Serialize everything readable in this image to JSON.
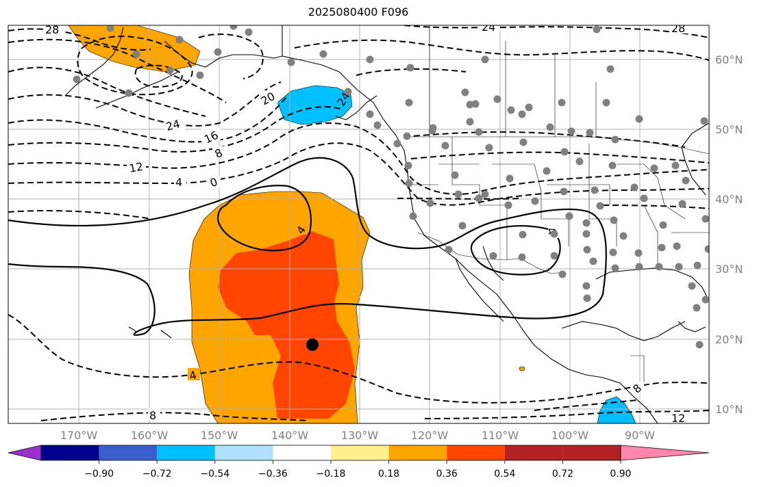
{
  "title": "2025080400 F096",
  "lat_labels": [
    "60°N",
    "50°N",
    "40°N",
    "30°N",
    "20°N",
    "10°N"
  ],
  "lon_labels": [
    "170°W",
    "160°W",
    "150°W",
    "140°W",
    "130°W",
    "120°W",
    "110°W",
    "100°W",
    "90°W"
  ],
  "colorbar": {
    "ticks": [
      "−0.90",
      "−0.72",
      "−0.54",
      "−0.36",
      "−0.18",
      "0.18",
      "0.36",
      "0.54",
      "0.72",
      "0.90"
    ],
    "colors": [
      "#9932cc",
      "#00008b",
      "#3a5fcd",
      "#00bfff",
      "#b0e2ff",
      "#ffffff",
      "#fff08f",
      "#ffa500",
      "#ff4500",
      "#b22222",
      "#ff88aa"
    ]
  },
  "contour_labels": [
    "28",
    "24",
    "20",
    "24",
    "16",
    "8",
    "12",
    "4",
    "0",
    "4",
    "4",
    "4",
    "8",
    "24",
    "28",
    "8",
    "12"
  ],
  "fill_colors": {
    "orange": "#ffa500",
    "red": "#ff4500",
    "blue": "#00bfff"
  }
}
